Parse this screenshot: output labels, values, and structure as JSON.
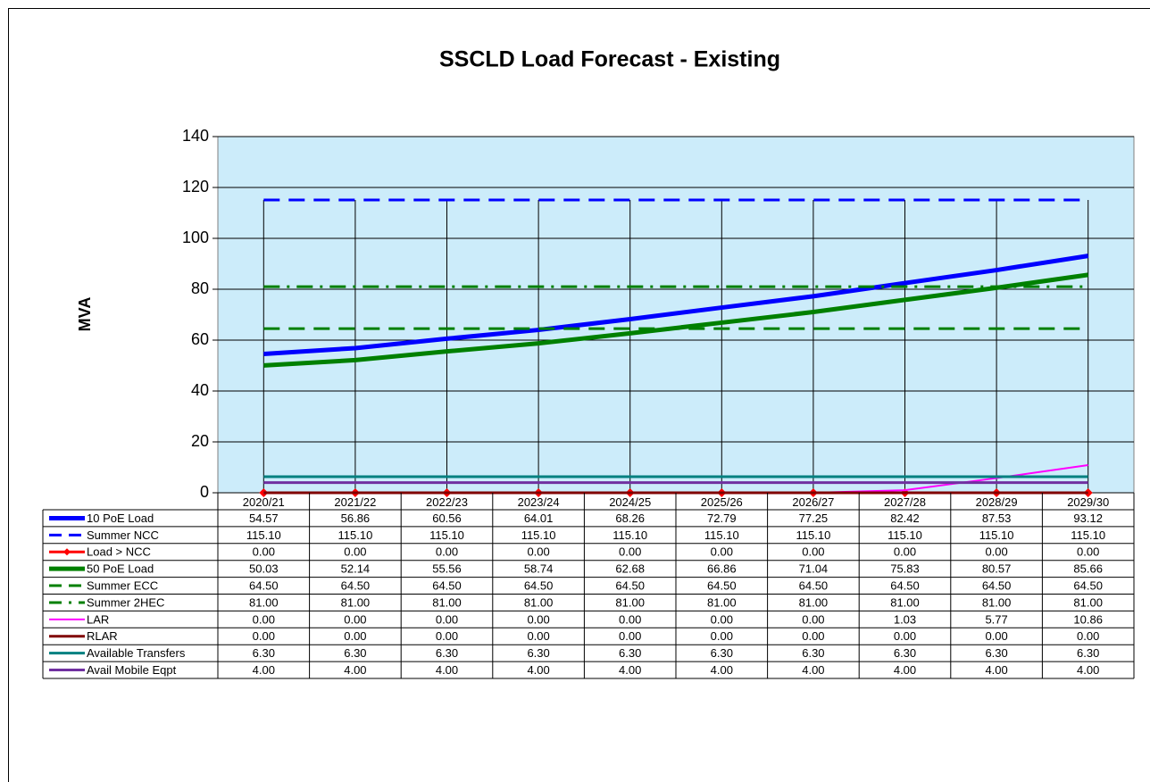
{
  "chart_data": {
    "type": "line",
    "title": "SSCLD Load Forecast - Existing",
    "y_label": "MVA",
    "categories": [
      "2020/21",
      "2021/22",
      "2022/23",
      "2023/24",
      "2024/25",
      "2025/26",
      "2026/27",
      "2027/28",
      "2028/29",
      "2029/30"
    ],
    "ylim": [
      0,
      140
    ],
    "yticks": [
      0,
      20,
      40,
      60,
      80,
      100,
      120,
      140
    ],
    "grid": true,
    "background": "#ccecfa",
    "series": [
      {
        "name": "10 PoE Load",
        "color": "#0000ff",
        "width": 5,
        "dash": "solid",
        "values": [
          54.57,
          56.86,
          60.56,
          64.01,
          68.26,
          72.79,
          77.25,
          82.42,
          87.53,
          93.12
        ],
        "value_labels": [
          "54.57",
          "56.86",
          "60.56",
          "64.01",
          "68.26",
          "72.79",
          "77.25",
          "82.42",
          "87.53",
          "93.12"
        ]
      },
      {
        "name": "Summer NCC",
        "color": "#0000ff",
        "width": 3,
        "dash": "dash",
        "values": [
          115.1,
          115.1,
          115.1,
          115.1,
          115.1,
          115.1,
          115.1,
          115.1,
          115.1,
          115.1
        ],
        "value_labels": [
          "115.10",
          "115.10",
          "115.10",
          "115.10",
          "115.10",
          "115.10",
          "115.10",
          "115.10",
          "115.10",
          "115.10"
        ]
      },
      {
        "name": "Load > NCC",
        "color": "#ff0000",
        "width": 3,
        "dash": "solid",
        "marker": "diamond",
        "values": [
          0,
          0,
          0,
          0,
          0,
          0,
          0,
          0,
          0,
          0
        ],
        "value_labels": [
          "0.00",
          "0.00",
          "0.00",
          "0.00",
          "0.00",
          "0.00",
          "0.00",
          "0.00",
          "0.00",
          "0.00"
        ]
      },
      {
        "name": "50 PoE Load",
        "color": "#008000",
        "width": 5,
        "dash": "solid",
        "values": [
          50.03,
          52.14,
          55.56,
          58.74,
          62.68,
          66.86,
          71.04,
          75.83,
          80.57,
          85.66
        ],
        "value_labels": [
          "50.03",
          "52.14",
          "55.56",
          "58.74",
          "62.68",
          "66.86",
          "71.04",
          "75.83",
          "80.57",
          "85.66"
        ]
      },
      {
        "name": "Summer ECC",
        "color": "#008000",
        "width": 3,
        "dash": "dash",
        "values": [
          64.5,
          64.5,
          64.5,
          64.5,
          64.5,
          64.5,
          64.5,
          64.5,
          64.5,
          64.5
        ],
        "value_labels": [
          "64.50",
          "64.50",
          "64.50",
          "64.50",
          "64.50",
          "64.50",
          "64.50",
          "64.50",
          "64.50",
          "64.50"
        ]
      },
      {
        "name": "Summer 2HEC",
        "color": "#008000",
        "width": 3,
        "dash": "dashdot",
        "values": [
          81,
          81,
          81,
          81,
          81,
          81,
          81,
          81,
          81,
          81
        ],
        "value_labels": [
          "81.00",
          "81.00",
          "81.00",
          "81.00",
          "81.00",
          "81.00",
          "81.00",
          "81.00",
          "81.00",
          "81.00"
        ]
      },
      {
        "name": "LAR",
        "color": "#ff00ff",
        "width": 2,
        "dash": "solid",
        "values": [
          0,
          0,
          0,
          0,
          0,
          0,
          0,
          1.03,
          5.77,
          10.86
        ],
        "value_labels": [
          "0.00",
          "0.00",
          "0.00",
          "0.00",
          "0.00",
          "0.00",
          "0.00",
          "1.03",
          "5.77",
          "10.86"
        ]
      },
      {
        "name": "RLAR",
        "color": "#800000",
        "width": 3,
        "dash": "solid",
        "values": [
          0,
          0,
          0,
          0,
          0,
          0,
          0,
          0,
          0,
          0
        ],
        "value_labels": [
          "0.00",
          "0.00",
          "0.00",
          "0.00",
          "0.00",
          "0.00",
          "0.00",
          "0.00",
          "0.00",
          "0.00"
        ]
      },
      {
        "name": "Available Transfers",
        "color": "#008080",
        "width": 3,
        "dash": "solid",
        "values": [
          6.3,
          6.3,
          6.3,
          6.3,
          6.3,
          6.3,
          6.3,
          6.3,
          6.3,
          6.3
        ],
        "value_labels": [
          "6.30",
          "6.30",
          "6.30",
          "6.30",
          "6.30",
          "6.30",
          "6.30",
          "6.30",
          "6.30",
          "6.30"
        ]
      },
      {
        "name": "Avail Mobile Eqpt",
        "color": "#7030a0",
        "width": 3,
        "dash": "solid",
        "values": [
          4,
          4,
          4,
          4,
          4,
          4,
          4,
          4,
          4,
          4
        ],
        "value_labels": [
          "4.00",
          "4.00",
          "4.00",
          "4.00",
          "4.00",
          "4.00",
          "4.00",
          "4.00",
          "4.00",
          "4.00"
        ]
      }
    ]
  }
}
